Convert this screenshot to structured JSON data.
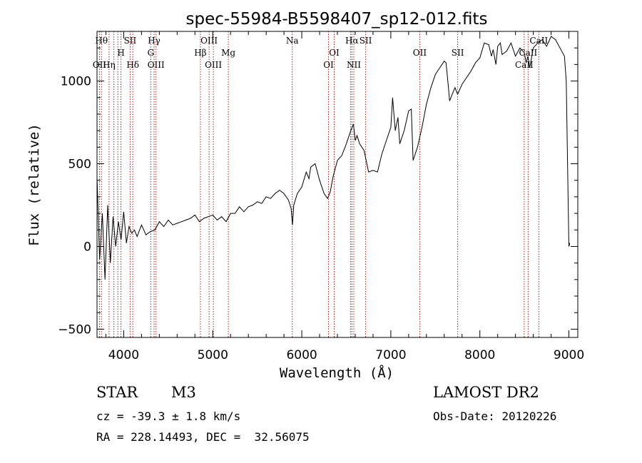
{
  "chart_data": {
    "type": "line",
    "title": "spec-55984-B5598407_sp12-012.fits",
    "xlabel": "Wavelength (Å)",
    "ylabel": "Flux (relative)",
    "xlim": [
      3700,
      9100
    ],
    "ylim": [
      -550,
      1300
    ],
    "xticks": [
      4000,
      5000,
      6000,
      7000,
      8000,
      9000
    ],
    "yticks": [
      -500,
      0,
      500,
      1000
    ],
    "grid": false,
    "series": [
      {
        "x": [
          3700,
          3730,
          3760,
          3790,
          3820,
          3850,
          3880,
          3910,
          3940,
          3970,
          4000,
          4030,
          4060,
          4090,
          4120,
          4150,
          4200,
          4250,
          4300,
          4350,
          4400,
          4450,
          4500,
          4550,
          4600,
          4650,
          4700,
          4750,
          4800,
          4850,
          4900,
          4950,
          5000,
          5050,
          5100,
          5150,
          5200,
          5250,
          5300,
          5350,
          5400,
          5450,
          5500,
          5550,
          5600,
          5650,
          5700,
          5750,
          5800,
          5850,
          5880,
          5895,
          5910,
          5950,
          6000,
          6050,
          6080,
          6100,
          6150,
          6200,
          6250,
          6290,
          6320,
          6350,
          6400,
          6450,
          6500,
          6550,
          6580,
          6600,
          6620,
          6650,
          6700,
          6750,
          6800,
          6850,
          6900,
          6950,
          7000,
          7020,
          7050,
          7080,
          7100,
          7150,
          7200,
          7230,
          7250,
          7300,
          7350,
          7400,
          7450,
          7500,
          7550,
          7600,
          7620,
          7640,
          7660,
          7690,
          7720,
          7750,
          7800,
          7850,
          7900,
          7950,
          8000,
          8050,
          8100,
          8130,
          8150,
          8180,
          8200,
          8230,
          8250,
          8300,
          8350,
          8400,
          8450,
          8500,
          8520,
          8540,
          8560,
          8600,
          8650,
          8700,
          8750,
          8800,
          8850,
          8900,
          8950,
          8970,
          9000,
          9010
        ],
        "values": [
          420,
          -80,
          200,
          -200,
          250,
          -100,
          180,
          0,
          150,
          40,
          210,
          20,
          120,
          80,
          100,
          60,
          130,
          70,
          90,
          100,
          150,
          120,
          160,
          130,
          140,
          150,
          160,
          170,
          190,
          150,
          170,
          180,
          190,
          160,
          180,
          150,
          200,
          200,
          240,
          210,
          240,
          250,
          270,
          260,
          300,
          290,
          320,
          340,
          320,
          280,
          230,
          130,
          250,
          320,
          360,
          450,
          410,
          480,
          500,
          400,
          320,
          290,
          330,
          420,
          520,
          550,
          620,
          700,
          740,
          640,
          670,
          620,
          580,
          450,
          460,
          450,
          560,
          640,
          720,
          900,
          700,
          780,
          620,
          700,
          820,
          830,
          520,
          600,
          720,
          860,
          960,
          1040,
          1080,
          1120,
          1110,
          1000,
          880,
          920,
          960,
          920,
          980,
          1020,
          1060,
          1110,
          1140,
          1230,
          1220,
          1150,
          1190,
          1100,
          1210,
          1230,
          1160,
          1180,
          1230,
          1150,
          1200,
          1170,
          1110,
          1150,
          1080,
          1200,
          1230,
          1250,
          1210,
          1270,
          1250,
          1200,
          1150,
          1000,
          0,
          20
        ]
      }
    ],
    "lines": [
      {
        "wave": 3750,
        "label": "Hθ",
        "row": 0
      },
      {
        "wave": 3728,
        "label": "OII",
        "row": 2
      },
      {
        "wave": 3835,
        "label": "Hη",
        "row": 2
      },
      {
        "wave": 3889,
        "label": "",
        "row": -1
      },
      {
        "wave": 3934,
        "label": "",
        "row": -1
      },
      {
        "wave": 3969,
        "label": "H",
        "row": 1
      },
      {
        "wave": 4072,
        "label": "SII",
        "row": 0
      },
      {
        "wave": 4102,
        "label": "Hδ",
        "row": 2
      },
      {
        "wave": 4304,
        "label": "G",
        "row": 1
      },
      {
        "wave": 4341,
        "label": "Hγ",
        "row": 0
      },
      {
        "wave": 4363,
        "label": "OIII",
        "row": 2
      },
      {
        "wave": 4861,
        "label": "Hβ",
        "row": 1
      },
      {
        "wave": 4959,
        "label": "OIII",
        "row": 0
      },
      {
        "wave": 5007,
        "label": "OIII",
        "row": 2
      },
      {
        "wave": 5175,
        "label": "Mg",
        "row": 1
      },
      {
        "wave": 5893,
        "label": "Na",
        "row": 0
      },
      {
        "wave": 6300,
        "label": "OI",
        "row": 2
      },
      {
        "wave": 6364,
        "label": "OI",
        "row": 1
      },
      {
        "wave": 6548,
        "label": "",
        "row": -1
      },
      {
        "wave": 6563,
        "label": "Hα",
        "row": 0
      },
      {
        "wave": 6584,
        "label": "NII",
        "row": 2
      },
      {
        "wave": 6717,
        "label": "SII",
        "row": 0
      },
      {
        "wave": 7325,
        "label": "OII",
        "row": 1
      },
      {
        "wave": 7751,
        "label": "SII",
        "row": 1
      },
      {
        "wave": 8498,
        "label": "CaII",
        "row": 2
      },
      {
        "wave": 8542,
        "label": "CaII",
        "row": 1
      },
      {
        "wave": 8662,
        "label": "CaII",
        "row": 0
      }
    ]
  },
  "info": {
    "class_label": "STAR",
    "subclass": "M3",
    "survey": "LAMOST DR2",
    "redshift": "cz = -39.3 ± 1.8 km/s",
    "obs_date": "Obs-Date: 20120226",
    "coords": "RA = 228.14493, DEC =  32.56075"
  },
  "colors": {
    "spectrum": "#000000",
    "line_markers": "#b22222",
    "axes": "#000000"
  }
}
